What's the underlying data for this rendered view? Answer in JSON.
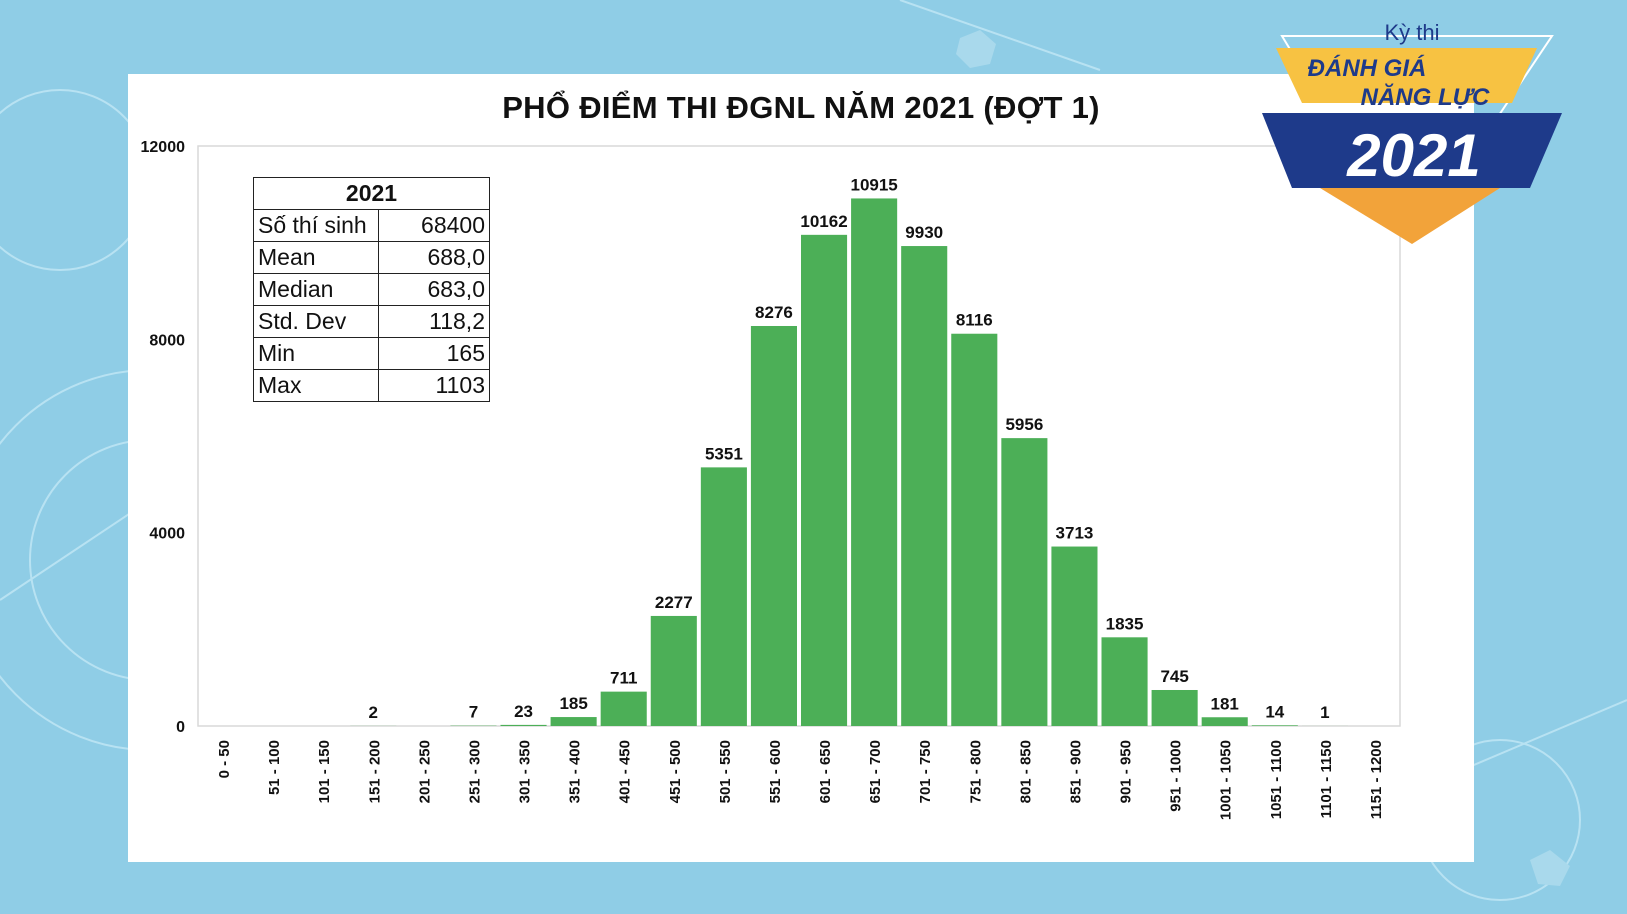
{
  "chart_data": {
    "type": "bar",
    "title": "PHỔ ĐIỂM THI ĐGNL NĂM 2021 (ĐỢT 1)",
    "xlabel": "",
    "ylabel": "",
    "categories": [
      "0 - 50",
      "51 - 100",
      "101 - 150",
      "151 - 200",
      "201 - 250",
      "251 - 300",
      "301 - 350",
      "351 - 400",
      "401 - 450",
      "451 - 500",
      "501 - 550",
      "551 - 600",
      "601 - 650",
      "651 - 700",
      "701 - 750",
      "751 - 800",
      "801 - 850",
      "851 - 900",
      "901 - 950",
      "951 - 1000",
      "1001 - 1050",
      "1051 - 1100",
      "1101 - 1150",
      "1151 - 1200"
    ],
    "values": [
      0,
      0,
      0,
      2,
      0,
      7,
      23,
      185,
      711,
      2277,
      5351,
      8276,
      10162,
      10915,
      9930,
      8116,
      5956,
      3713,
      1835,
      745,
      181,
      14,
      1,
      0
    ],
    "data_labels": [
      "",
      "",
      "",
      "2",
      "",
      "7",
      "23",
      "185",
      "711",
      "2277",
      "5351",
      "8276",
      "10162",
      "10915",
      "9930",
      "8116",
      "5956",
      "3713",
      "1835",
      "745",
      "181",
      "14",
      "1",
      ""
    ],
    "ylim": [
      0,
      12000
    ],
    "yticks": [
      0,
      4000,
      8000,
      12000
    ],
    "grid": false,
    "legend": "none",
    "bar_color": "#4caf57"
  },
  "stats_table": {
    "header": "2021",
    "rows": [
      {
        "label": "Số thí sinh",
        "value": "68400"
      },
      {
        "label": "Mean",
        "value": "688,0"
      },
      {
        "label": "Median",
        "value": "683,0"
      },
      {
        "label": "Std. Dev",
        "value": "118,2"
      },
      {
        "label": "Min",
        "value": "165"
      },
      {
        "label": "Max",
        "value": "1103"
      }
    ]
  },
  "logo": {
    "line1": "Kỳ thi",
    "line2": "ĐÁNH GIÁ",
    "line3": "NĂNG LỰC",
    "year": "2021",
    "colors": {
      "navy": "#1e3a8a",
      "gold": "#f7c242",
      "orange": "#f2a33a"
    }
  },
  "background_color": "#8fcde6"
}
